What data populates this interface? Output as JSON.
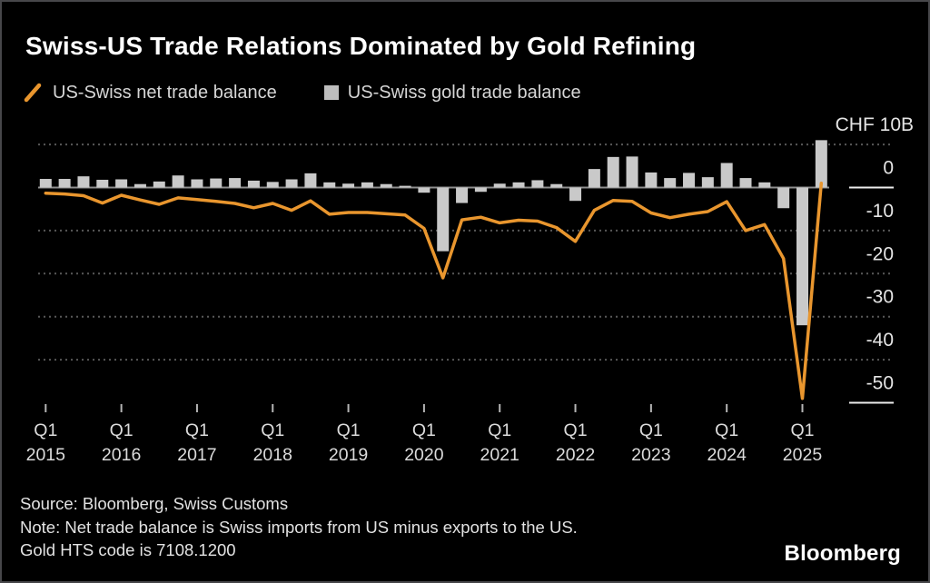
{
  "title": "Swiss-US Trade Relations Dominated by Gold Refining",
  "legend": {
    "net": {
      "label": "US-Swiss net trade balance",
      "marker": "orange-line"
    },
    "gold": {
      "label": "US-Swiss gold trade balance",
      "marker": "gray-square"
    }
  },
  "footer": {
    "source": "Source: Bloomberg, Swiss Customs",
    "note_line1": "Note: Net trade balance is Swiss imports from US minus exports to the US.",
    "note_line2": "Gold HTS code is 7108.1200"
  },
  "logo_text": "Bloomberg",
  "colors": {
    "background": "#000000",
    "accent_orange": "#E9962E",
    "bar_gray": "#C9C9C9",
    "grid_gray": "#585858",
    "zero_line_gray": "#8F8F8F",
    "axis_label_gray": "#E4E4E4",
    "tick_label_gray": "#DBDBDB",
    "label_underline_white": "#EDEDED"
  },
  "chart_data": {
    "type": "bar+line",
    "title": "Swiss-US Trade Relations Dominated by Gold Refining",
    "unit_label": "CHF 10B",
    "grid": "dotted horizontal",
    "legend_position": "top-left",
    "ylim": [
      -53,
      13
    ],
    "y_ticks": [
      {
        "value": 10,
        "label": "CHF 10B"
      },
      {
        "value": 0,
        "label": "0"
      },
      {
        "value": -10,
        "label": "-10"
      },
      {
        "value": -20,
        "label": "-20"
      },
      {
        "value": -30,
        "label": "-30"
      },
      {
        "value": -40,
        "label": "-40"
      },
      {
        "value": -50,
        "label": "-50"
      }
    ],
    "x_ticks": [
      {
        "top": "Q1",
        "bottom": "2015",
        "quarter_index": 0
      },
      {
        "top": "Q1",
        "bottom": "2016",
        "quarter_index": 4
      },
      {
        "top": "Q1",
        "bottom": "2017",
        "quarter_index": 8
      },
      {
        "top": "Q1",
        "bottom": "2018",
        "quarter_index": 12
      },
      {
        "top": "Q1",
        "bottom": "2019",
        "quarter_index": 16
      },
      {
        "top": "Q1",
        "bottom": "2020",
        "quarter_index": 20
      },
      {
        "top": "Q1",
        "bottom": "2021",
        "quarter_index": 24
      },
      {
        "top": "Q1",
        "bottom": "2022",
        "quarter_index": 28
      },
      {
        "top": "Q1",
        "bottom": "2023",
        "quarter_index": 32
      },
      {
        "top": "Q1",
        "bottom": "2024",
        "quarter_index": 36
      },
      {
        "top": "Q1",
        "bottom": "2025",
        "quarter_index": 40
      }
    ],
    "categories": [
      "Q1 2015",
      "Q2 2015",
      "Q3 2015",
      "Q4 2015",
      "Q1 2016",
      "Q2 2016",
      "Q3 2016",
      "Q4 2016",
      "Q1 2017",
      "Q2 2017",
      "Q3 2017",
      "Q4 2017",
      "Q1 2018",
      "Q2 2018",
      "Q3 2018",
      "Q4 2018",
      "Q1 2019",
      "Q2 2019",
      "Q3 2019",
      "Q4 2019",
      "Q1 2020",
      "Q2 2020",
      "Q3 2020",
      "Q4 2020",
      "Q1 2021",
      "Q2 2021",
      "Q3 2021",
      "Q4 2021",
      "Q1 2022",
      "Q2 2022",
      "Q3 2022",
      "Q4 2022",
      "Q1 2023",
      "Q2 2023",
      "Q3 2023",
      "Q4 2023",
      "Q1 2024",
      "Q2 2024",
      "Q3 2024",
      "Q4 2024",
      "Q1 2025",
      "Q2 2025"
    ],
    "series": [
      {
        "name": "US-Swiss net trade balance",
        "type": "line",
        "color": "#E9962E",
        "values": [
          -1.3,
          -1.5,
          -1.9,
          -3.6,
          -1.8,
          -2.9,
          -3.9,
          -2.4,
          -2.8,
          -3.2,
          -3.7,
          -4.7,
          -3.7,
          -5.3,
          -3.1,
          -6.2,
          -5.8,
          -5.8,
          -6.1,
          -6.4,
          -9.5,
          -21.0,
          -7.5,
          -6.9,
          -8.2,
          -7.6,
          -7.8,
          -9.3,
          -12.5,
          -5.3,
          -3.0,
          -3.2,
          -5.9,
          -7.0,
          -6.2,
          -5.6,
          -3.3,
          -10.0,
          -8.6,
          -16.5,
          -49.0,
          1.0
        ]
      },
      {
        "name": "US-Swiss gold trade balance",
        "type": "bar",
        "color": "#C9C9C9",
        "values": [
          2.0,
          2.0,
          2.6,
          1.8,
          1.9,
          0.8,
          1.4,
          2.8,
          1.9,
          2.1,
          2.2,
          1.6,
          1.3,
          1.9,
          3.3,
          1.2,
          0.9,
          1.2,
          0.8,
          0.4,
          -1.2,
          -14.8,
          -3.6,
          -1.0,
          0.9,
          1.2,
          1.7,
          0.8,
          -3.1,
          4.3,
          7.1,
          7.2,
          3.5,
          2.2,
          3.4,
          2.4,
          5.7,
          2.2,
          1.2,
          -4.8,
          -32.0,
          11.0
        ]
      }
    ]
  }
}
